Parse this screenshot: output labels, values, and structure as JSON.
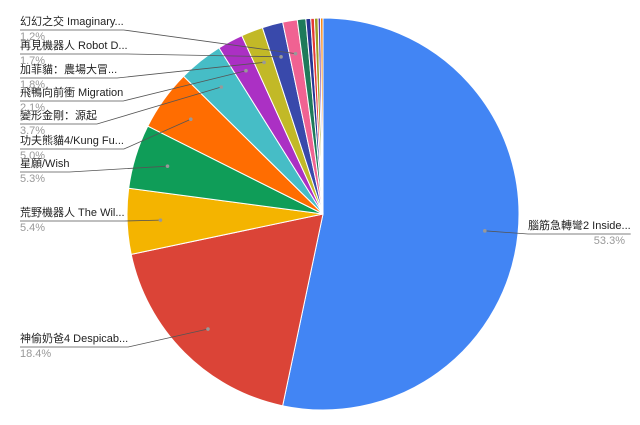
{
  "chart_data": {
    "type": "pie",
    "categories": [
      "腦筋急轉彎2 Inside...",
      "神偷奶爸4 Despicab...",
      "荒野機器人 The Wil...",
      "星願/Wish",
      "功夫熊貓4/Kung Fu...",
      "變形金剛：源起",
      "飛鴨向前衝 Migration",
      "加菲貓：農場大冒...",
      "再見機器人 Robot D...",
      "幻幻之交 Imaginary...",
      null,
      null,
      null,
      null,
      null,
      null
    ],
    "values": [
      53.3,
      18.4,
      5.4,
      5.3,
      5.0,
      3.7,
      2.1,
      1.8,
      1.7,
      1.2,
      0.7,
      0.4,
      0.3,
      0.3,
      0.2,
      0.2
    ],
    "value_labels": [
      "53.3%",
      "18.4%",
      "5.4%",
      "5.3%",
      "5.0%",
      "3.7%",
      "2.1%",
      "1.8%",
      "1.7%",
      "1.2%",
      null,
      null,
      null,
      null,
      null,
      null
    ],
    "colors": [
      "#4285f4",
      "#db4437",
      "#f4b400",
      "#0f9d58",
      "#ff6d01",
      "#46bdc6",
      "#ab30c4",
      "#c2b927",
      "#3949ab",
      "#f06292",
      "#1e7a5a",
      "#283593",
      "#e53935",
      "#9e9d24",
      "#5e35b1",
      "#f57c00"
    ]
  }
}
